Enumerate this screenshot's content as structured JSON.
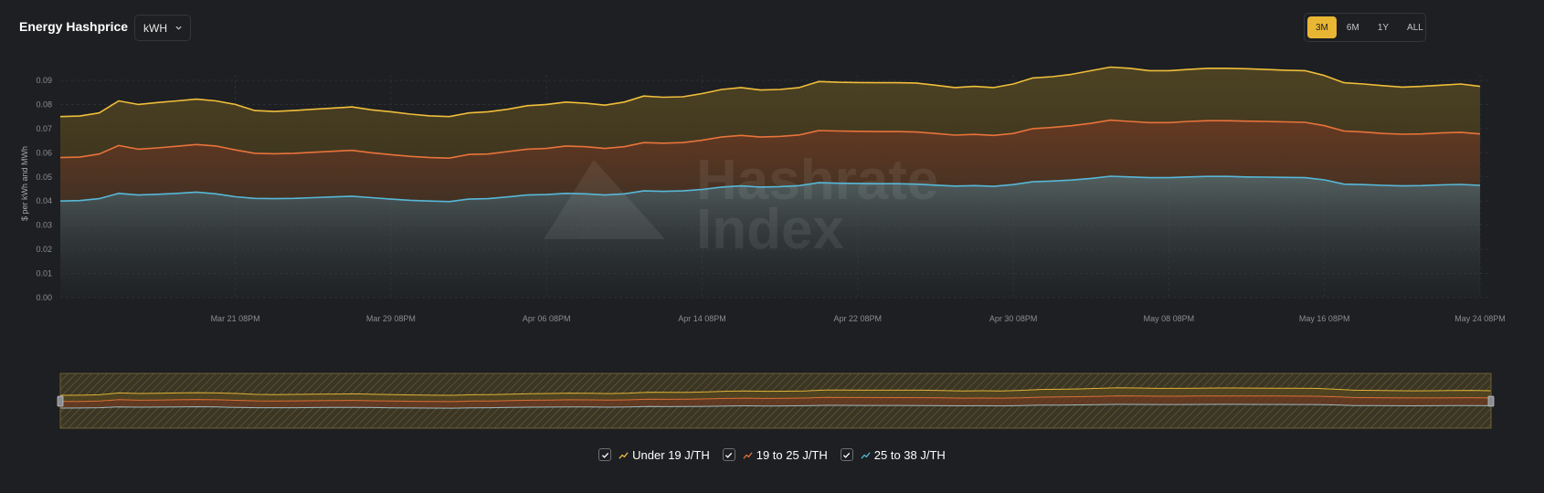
{
  "header": {
    "title": "Energy Hashprice",
    "unit_value": "kWH"
  },
  "range": {
    "options": [
      "3M",
      "6M",
      "1Y",
      "ALL"
    ],
    "active": "3M"
  },
  "watermark": {
    "text_line1": "Hashrate",
    "text_line2": "Index"
  },
  "colors": {
    "under19": "#f0be3a",
    "r19to25": "#e8733a",
    "r25to38": "#56b8d8",
    "accent": "#e9b634"
  },
  "legend": [
    {
      "label": "Under 19 J/TH",
      "color": "#f0be3a",
      "checked": true
    },
    {
      "label": "19 to 25 J/TH",
      "color": "#e8733a",
      "checked": true
    },
    {
      "label": "25 to 38 J/TH",
      "color": "#56b8d8",
      "checked": true
    }
  ],
  "chart_data": {
    "type": "area",
    "ylabel": "$ per kWh and MWh",
    "ylim": [
      0,
      0.09
    ],
    "y_ticks": [
      "0.00",
      "0.01",
      "0.02",
      "0.03",
      "0.04",
      "0.05",
      "0.06",
      "0.07",
      "0.08",
      "0.09"
    ],
    "x_range": [
      "Mar 12",
      "May 24"
    ],
    "x_ticks": [
      "Mar 21 08PM",
      "Mar 29 08PM",
      "Apr 06 08PM",
      "Apr 14 08PM",
      "Apr 22 08PM",
      "Apr 30 08PM",
      "May 08 08PM",
      "May 16 08PM",
      "May 24 08PM"
    ],
    "grid": true,
    "legend_position": "bottom",
    "navigator": true,
    "x": [
      "Mar 12",
      "Mar 13",
      "Mar 14",
      "Mar 15",
      "Mar 16",
      "Mar 17",
      "Mar 18",
      "Mar 19",
      "Mar 20",
      "Mar 21",
      "Mar 22",
      "Mar 23",
      "Mar 24",
      "Mar 25",
      "Mar 26",
      "Mar 27",
      "Mar 28",
      "Mar 29",
      "Mar 30",
      "Mar 31",
      "Apr 01",
      "Apr 02",
      "Apr 03",
      "Apr 04",
      "Apr 05",
      "Apr 06",
      "Apr 07",
      "Apr 08",
      "Apr 09",
      "Apr 10",
      "Apr 11",
      "Apr 12",
      "Apr 13",
      "Apr 14",
      "Apr 15",
      "Apr 16",
      "Apr 17",
      "Apr 18",
      "Apr 19",
      "Apr 20",
      "Apr 21",
      "Apr 22",
      "Apr 23",
      "Apr 24",
      "Apr 25",
      "Apr 26",
      "Apr 27",
      "Apr 28",
      "Apr 29",
      "Apr 30",
      "May 01",
      "May 02",
      "May 03",
      "May 04",
      "May 05",
      "May 06",
      "May 07",
      "May 08",
      "May 09",
      "May 10",
      "May 11",
      "May 12",
      "May 13",
      "May 14",
      "May 15",
      "May 16",
      "May 17",
      "May 18",
      "May 19",
      "May 20",
      "May 21",
      "May 22",
      "May 23",
      "May 24"
    ],
    "series": [
      {
        "name": "Under 19 J/TH",
        "values": [
          0.075,
          0.0752,
          0.0765,
          0.0815,
          0.08,
          0.0808,
          0.0815,
          0.0822,
          0.0815,
          0.08,
          0.0775,
          0.0771,
          0.0775,
          0.078,
          0.0785,
          0.079,
          0.0778,
          0.077,
          0.076,
          0.0753,
          0.075,
          0.0765,
          0.077,
          0.078,
          0.0795,
          0.08,
          0.081,
          0.0805,
          0.0797,
          0.081,
          0.0835,
          0.083,
          0.0832,
          0.0845,
          0.0862,
          0.087,
          0.086,
          0.0862,
          0.087,
          0.0895,
          0.0892,
          0.0891,
          0.089,
          0.089,
          0.0889,
          0.088,
          0.087,
          0.0875,
          0.087,
          0.0885,
          0.091,
          0.0915,
          0.0925,
          0.094,
          0.0955,
          0.095,
          0.094,
          0.094,
          0.0945,
          0.095,
          0.095,
          0.0948,
          0.0945,
          0.0942,
          0.094,
          0.092,
          0.089,
          0.0885,
          0.0878,
          0.0872,
          0.0875,
          0.088,
          0.0885,
          0.0875
        ]
      },
      {
        "name": "19 to 25 J/TH",
        "values": [
          0.058,
          0.0582,
          0.0595,
          0.063,
          0.0615,
          0.062,
          0.0627,
          0.0634,
          0.0628,
          0.0612,
          0.0598,
          0.0596,
          0.0598,
          0.0602,
          0.0606,
          0.061,
          0.06,
          0.0592,
          0.0585,
          0.058,
          0.0578,
          0.0593,
          0.0595,
          0.0605,
          0.0615,
          0.0618,
          0.0628,
          0.0625,
          0.0618,
          0.0625,
          0.0642,
          0.064,
          0.0642,
          0.0652,
          0.0665,
          0.0672,
          0.0665,
          0.0668,
          0.0674,
          0.0692,
          0.069,
          0.0689,
          0.0688,
          0.0688,
          0.0686,
          0.068,
          0.0673,
          0.0676,
          0.0672,
          0.068,
          0.07,
          0.0705,
          0.0712,
          0.0722,
          0.0735,
          0.073,
          0.0725,
          0.0725,
          0.073,
          0.0733,
          0.0733,
          0.0731,
          0.073,
          0.0728,
          0.0726,
          0.0712,
          0.069,
          0.0686,
          0.068,
          0.0677,
          0.0678,
          0.0682,
          0.0685,
          0.0678
        ]
      },
      {
        "name": "25 to 38 J/TH",
        "values": [
          0.04,
          0.0402,
          0.041,
          0.0432,
          0.0425,
          0.0428,
          0.0432,
          0.0437,
          0.043,
          0.0418,
          0.0411,
          0.041,
          0.0411,
          0.0414,
          0.0417,
          0.042,
          0.0414,
          0.0408,
          0.0403,
          0.04,
          0.0398,
          0.0408,
          0.041,
          0.0417,
          0.0425,
          0.0427,
          0.0432,
          0.043,
          0.0425,
          0.043,
          0.0442,
          0.044,
          0.0442,
          0.0448,
          0.0458,
          0.0463,
          0.0458,
          0.046,
          0.0464,
          0.0476,
          0.0474,
          0.0473,
          0.0472,
          0.0472,
          0.047,
          0.0466,
          0.0462,
          0.0464,
          0.0461,
          0.0468,
          0.048,
          0.0483,
          0.0487,
          0.0494,
          0.0503,
          0.05,
          0.0497,
          0.0497,
          0.05,
          0.0502,
          0.0502,
          0.05,
          0.0499,
          0.0498,
          0.0497,
          0.0488,
          0.047,
          0.0468,
          0.0465,
          0.0463,
          0.0464,
          0.0467,
          0.0469,
          0.0465
        ]
      }
    ]
  }
}
